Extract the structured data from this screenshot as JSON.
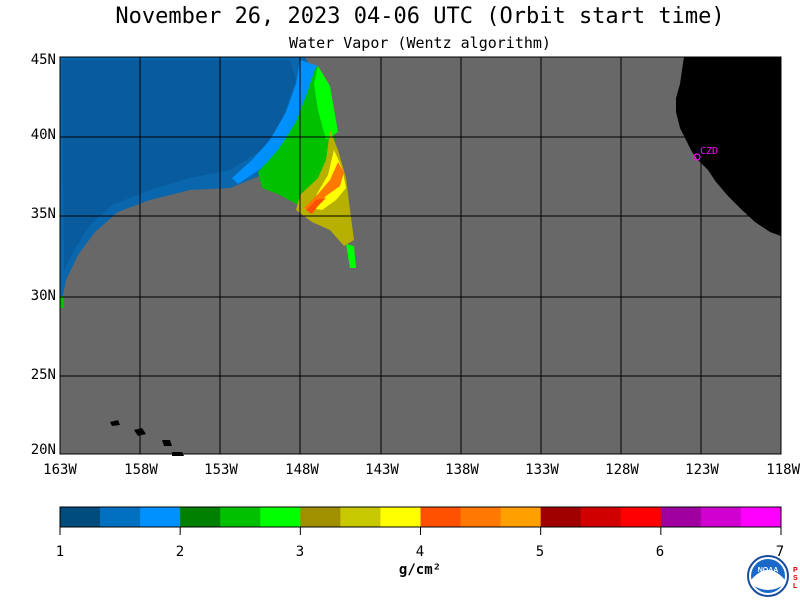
{
  "title": "November 26, 2023  04-06 UTC  (Orbit start time)",
  "subtitle": "Water Vapor (Wentz algorithm)",
  "map": {
    "lat_labels": [
      "45N",
      "40N",
      "35N",
      "30N",
      "25N",
      "20N"
    ],
    "lon_labels": [
      "163W",
      "158W",
      "153W",
      "148W",
      "143W",
      "138W",
      "133W",
      "128W",
      "123W",
      "118W"
    ],
    "station_label": "CZD",
    "no_data_color": "#686868",
    "land_color": "#000000",
    "grid_color": "#000000",
    "station_color": "#ff00ff"
  },
  "colorbar": {
    "ticks": [
      "1",
      "2",
      "3",
      "4",
      "5",
      "6",
      "7"
    ],
    "units": "g/cm²",
    "colors": [
      "#004c7c",
      "#0070c0",
      "#0090ff",
      "#008000",
      "#00c000",
      "#00ff00",
      "#a09000",
      "#c8c800",
      "#ffff00",
      "#ff5000",
      "#ff7800",
      "#ffa000",
      "#a00000",
      "#d00000",
      "#ff0000",
      "#a000a0",
      "#d000d0",
      "#ff00ff"
    ]
  },
  "logos": {
    "noaa_text": "NOAA",
    "psl_text": "PSL"
  }
}
